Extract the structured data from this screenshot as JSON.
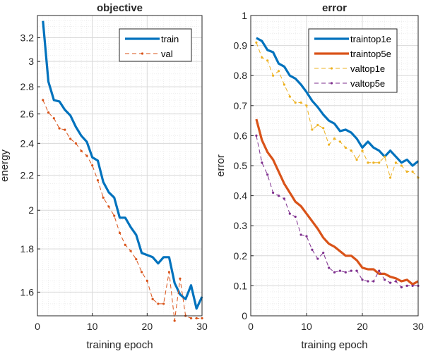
{
  "chart_data": [
    {
      "type": "line",
      "title": "objective",
      "xlabel": "training epoch",
      "ylabel": "energy",
      "xlim": [
        0,
        30
      ],
      "ylim": [
        1.5,
        3.4
      ],
      "y_scale": "log",
      "xticks": [
        "0",
        "10",
        "20",
        "30"
      ],
      "yticks": [
        1.6,
        1.8,
        2,
        2.2,
        2.4,
        2.6,
        2.8,
        3,
        3.2
      ],
      "ytick_labels": [
        "1.6",
        "1.8",
        "2",
        "2.2",
        "2.4",
        "2.6",
        "2.8",
        "3",
        "3.2"
      ],
      "grid": true,
      "minor_grid": true,
      "legend_location": "top-right",
      "x": [
        1,
        2,
        3,
        4,
        5,
        6,
        7,
        8,
        9,
        10,
        11,
        12,
        13,
        14,
        15,
        16,
        17,
        18,
        19,
        20,
        21,
        22,
        23,
        24,
        25,
        26,
        27,
        28,
        29,
        30
      ],
      "series": [
        {
          "name": "train",
          "style": "solid",
          "color": "#0072BD",
          "values": [
            3.35,
            2.84,
            2.7,
            2.69,
            2.63,
            2.59,
            2.51,
            2.45,
            2.41,
            2.31,
            2.29,
            2.16,
            2.1,
            2.07,
            1.96,
            1.96,
            1.91,
            1.87,
            1.78,
            1.77,
            1.76,
            1.73,
            1.76,
            1.76,
            1.64,
            1.59,
            1.57,
            1.63,
            1.53,
            1.58
          ]
        },
        {
          "name": "val",
          "style": "dashed-markers",
          "color": "#D95319",
          "values": [
            2.7,
            2.61,
            2.57,
            2.5,
            2.49,
            2.43,
            2.4,
            2.35,
            2.32,
            2.26,
            2.17,
            2.07,
            2.02,
            1.97,
            1.88,
            1.82,
            1.79,
            1.75,
            1.69,
            1.65,
            1.57,
            1.55,
            1.55,
            1.69,
            1.48,
            1.66,
            1.5,
            1.49,
            1.49,
            1.49
          ]
        }
      ]
    },
    {
      "type": "line",
      "title": "error",
      "xlabel": "training epoch",
      "ylabel": "error",
      "xlim": [
        0,
        30
      ],
      "ylim": [
        0,
        1
      ],
      "xticks": [
        "0",
        "10",
        "20",
        "30"
      ],
      "yticks": [
        0,
        0.1,
        0.2,
        0.3,
        0.4,
        0.5,
        0.6,
        0.7,
        0.8,
        0.9,
        1
      ],
      "ytick_labels": [
        "0",
        "0.1",
        "0.2",
        "0.3",
        "0.4",
        "0.5",
        "0.6",
        "0.7",
        "0.8",
        "0.9",
        "1"
      ],
      "grid": true,
      "minor_grid": true,
      "legend_location": "top-right",
      "x": [
        1,
        2,
        3,
        4,
        5,
        6,
        7,
        8,
        9,
        10,
        11,
        12,
        13,
        14,
        15,
        16,
        17,
        18,
        19,
        20,
        21,
        22,
        23,
        24,
        25,
        26,
        27,
        28,
        29,
        30
      ],
      "series": [
        {
          "name": "traintop1e",
          "style": "solid",
          "color": "#0072BD",
          "values": [
            0.925,
            0.915,
            0.885,
            0.878,
            0.84,
            0.83,
            0.8,
            0.79,
            0.77,
            0.745,
            0.716,
            0.695,
            0.67,
            0.65,
            0.64,
            0.615,
            0.62,
            0.61,
            0.59,
            0.56,
            0.58,
            0.56,
            0.55,
            0.53,
            0.55,
            0.53,
            0.51,
            0.52,
            0.5,
            0.515
          ]
        },
        {
          "name": "traintop5e",
          "style": "solid",
          "color": "#D95319",
          "values": [
            0.655,
            0.585,
            0.545,
            0.52,
            0.48,
            0.44,
            0.41,
            0.38,
            0.365,
            0.34,
            0.315,
            0.29,
            0.26,
            0.24,
            0.23,
            0.215,
            0.2,
            0.2,
            0.185,
            0.16,
            0.155,
            0.155,
            0.14,
            0.14,
            0.13,
            0.125,
            0.115,
            0.12,
            0.105,
            0.115
          ]
        },
        {
          "name": "valtop1e",
          "style": "dashed-markers",
          "color": "#EDB120",
          "values": [
            0.91,
            0.86,
            0.85,
            0.8,
            0.815,
            0.77,
            0.73,
            0.71,
            0.71,
            0.7,
            0.62,
            0.635,
            0.625,
            0.57,
            0.59,
            0.58,
            0.56,
            0.55,
            0.52,
            0.55,
            0.51,
            0.51,
            0.51,
            0.53,
            0.46,
            0.51,
            0.5,
            0.48,
            0.48,
            0.46
          ]
        },
        {
          "name": "valtop5e",
          "style": "dashed-markers",
          "color": "#7E2F8E",
          "values": [
            0.6,
            0.51,
            0.47,
            0.41,
            0.4,
            0.39,
            0.34,
            0.33,
            0.27,
            0.265,
            0.22,
            0.19,
            0.21,
            0.16,
            0.145,
            0.15,
            0.145,
            0.15,
            0.15,
            0.12,
            0.115,
            0.115,
            0.15,
            0.12,
            0.11,
            0.115,
            0.095,
            0.1,
            0.1,
            0.1
          ]
        }
      ]
    }
  ]
}
